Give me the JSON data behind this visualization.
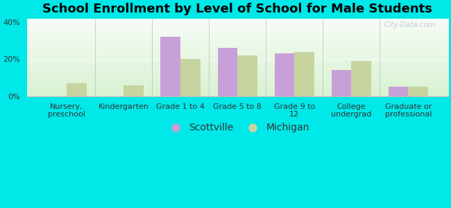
{
  "title": "School Enrollment by Level of School for Male Students",
  "categories": [
    "Nursery,\npreschool",
    "Kindergarten",
    "Grade 1 to 4",
    "Grade 5 to 8",
    "Grade 9 to\n12",
    "College\nundergrad",
    "Graduate or\nprofessional"
  ],
  "scottville": [
    0,
    0,
    32,
    26,
    23,
    14,
    5
  ],
  "michigan": [
    7,
    6,
    20,
    22,
    24,
    19,
    5
  ],
  "scottville_color": "#c8a0d8",
  "michigan_color": "#c8d4a0",
  "background_outer": "#00e8e8",
  "ylim": [
    0,
    42
  ],
  "yticks": [
    0,
    20,
    40
  ],
  "ytick_labels": [
    "0%",
    "20%",
    "40%"
  ],
  "legend_scottville": "Scottville",
  "legend_michigan": "Michigan",
  "watermark": "City-Data.com",
  "bar_width": 0.35,
  "title_fontsize": 13,
  "tick_fontsize": 8,
  "legend_fontsize": 10
}
